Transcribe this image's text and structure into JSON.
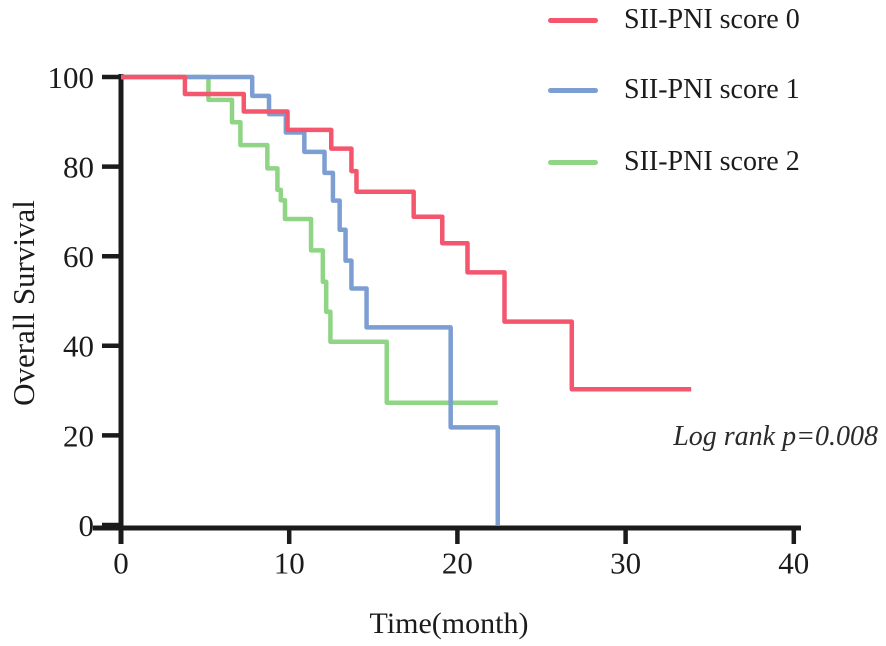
{
  "chart_data": {
    "type": "line",
    "subtype": "kaplan-meier-step-survival",
    "title": "",
    "xlabel": "Time(month)",
    "ylabel": "Overall Survival",
    "xlim": [
      0,
      40
    ],
    "ylim": [
      0,
      100
    ],
    "x_ticks": [
      0,
      10,
      20,
      30,
      40
    ],
    "y_ticks": [
      0,
      20,
      40,
      60,
      80,
      100
    ],
    "grid": false,
    "legend_position": "top-right",
    "annotation": "Log rank p=0.008",
    "axis_color": "#1b1b1b",
    "series": [
      {
        "name": "SII-PNI score 0",
        "color": "#F4566E",
        "steps": [
          [
            0,
            100
          ],
          [
            3.8,
            96.2
          ],
          [
            7.3,
            92.3
          ],
          [
            9.9,
            88.2
          ],
          [
            12.5,
            84.0
          ],
          [
            13.7,
            79.0
          ],
          [
            14.0,
            74.4
          ],
          [
            17.4,
            68.8
          ],
          [
            19.1,
            62.9
          ],
          [
            20.6,
            56.4
          ],
          [
            22.8,
            45.4
          ],
          [
            26.8,
            30.3
          ]
        ],
        "end_time": 33.9
      },
      {
        "name": "SII-PNI score 1",
        "color": "#7C9ED2",
        "steps": [
          [
            0,
            100
          ],
          [
            7.8,
            95.8
          ],
          [
            8.8,
            91.7
          ],
          [
            9.8,
            87.6
          ],
          [
            10.9,
            83.3
          ],
          [
            12.1,
            78.6
          ],
          [
            12.6,
            72.4
          ],
          [
            13.0,
            65.9
          ],
          [
            13.35,
            59.0
          ],
          [
            13.7,
            52.8
          ],
          [
            14.6,
            44.1
          ],
          [
            19.6,
            21.8
          ],
          [
            22.4,
            0
          ]
        ],
        "end_time": 22.4
      },
      {
        "name": "SII-PNI score 2",
        "color": "#8FD585",
        "steps": [
          [
            0,
            100
          ],
          [
            5.2,
            94.9
          ],
          [
            6.6,
            89.9
          ],
          [
            7.1,
            84.8
          ],
          [
            8.7,
            79.6
          ],
          [
            9.3,
            74.8
          ],
          [
            9.5,
            72.5
          ],
          [
            9.75,
            68.3
          ],
          [
            11.3,
            61.3
          ],
          [
            12.0,
            54.3
          ],
          [
            12.2,
            47.6
          ],
          [
            12.45,
            40.9
          ],
          [
            15.8,
            27.3
          ]
        ],
        "end_time": 22.4
      }
    ]
  }
}
